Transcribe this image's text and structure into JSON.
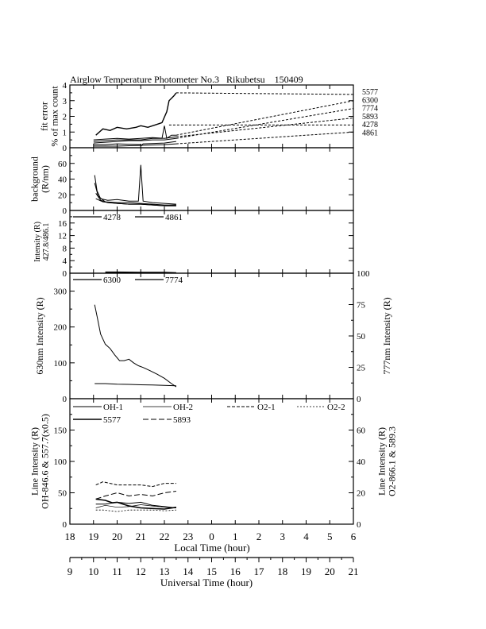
{
  "page": {
    "title": "Airglow Temperature Photometer No.3   Rikubetsu    150409"
  },
  "x_axes": {
    "local": {
      "label": "Local Time (hour)",
      "ticks": [
        "18",
        "19",
        "20",
        "21",
        "22",
        "23",
        "0",
        "1",
        "2",
        "3",
        "4",
        "5",
        "6"
      ]
    },
    "universal": {
      "label": "Universal Time (hour)",
      "ticks": [
        "9",
        "10",
        "11",
        "12",
        "13",
        "14",
        "15",
        "16",
        "17",
        "18",
        "19",
        "20",
        "21"
      ]
    }
  },
  "chart_data": [
    {
      "type": "line",
      "panel": "fit_error",
      "ylabel": [
        "fit error",
        "% of max count"
      ],
      "ylim": [
        0,
        4
      ],
      "yticks": [
        "0",
        "1",
        "2",
        "3",
        "4"
      ],
      "x_units": "local time hour (18-30)",
      "line_labels": [
        "5577",
        "6300",
        "7774",
        "5893",
        "4278",
        "4861"
      ],
      "series": [
        {
          "name": "5577",
          "style": "solid",
          "width": 1.4,
          "x": [
            19.1,
            19.4,
            19.7,
            20.0,
            20.4,
            20.8,
            21.0,
            21.3,
            21.7,
            21.9,
            22.1,
            22.2,
            22.4,
            22.5
          ],
          "y": [
            0.8,
            1.2,
            1.1,
            1.3,
            1.2,
            1.3,
            1.4,
            1.3,
            1.5,
            1.6,
            2.3,
            3.0,
            3.3,
            3.5
          ]
        },
        {
          "name": "6300",
          "style": "solid",
          "width": 1,
          "x": [
            19.0,
            19.5,
            20.0,
            20.5,
            21.0,
            21.5,
            21.9,
            22.0,
            22.1,
            22.3,
            22.5
          ],
          "y": [
            0.4,
            0.45,
            0.5,
            0.5,
            0.5,
            0.6,
            0.6,
            1.4,
            0.6,
            0.8,
            0.8
          ]
        },
        {
          "name": "7774",
          "style": "solid",
          "width": 1,
          "x": [
            19.0,
            19.5,
            20.0,
            20.5,
            21.0,
            21.5,
            22.0,
            22.5
          ],
          "y": [
            0.3,
            0.35,
            0.4,
            0.45,
            0.45,
            0.5,
            0.5,
            0.6
          ]
        },
        {
          "name": "5893",
          "style": "solid",
          "width": 1,
          "x": [
            19.0,
            19.5,
            20.0,
            20.5,
            21.0,
            21.5,
            22.0,
            22.5
          ],
          "y": [
            0.5,
            0.55,
            0.6,
            0.55,
            0.6,
            0.65,
            0.6,
            0.7
          ]
        },
        {
          "name": "4278",
          "style": "solid",
          "width": 1,
          "x": [
            19.0,
            19.5,
            20.0,
            21.0,
            21.0,
            21.1,
            22.0,
            22.5
          ],
          "y": [
            0.2,
            0.2,
            0.25,
            0.2,
            0.1,
            0.25,
            0.3,
            0.4
          ]
        },
        {
          "name": "4861",
          "style": "solid",
          "width": 1,
          "x": [
            19.0,
            20.0,
            21.0,
            22.0,
            22.5
          ],
          "y": [
            0.1,
            0.1,
            0.15,
            0.2,
            0.25
          ]
        }
      ],
      "connectors": [
        {
          "name": "5577",
          "x": [
            22.5,
            30.0
          ],
          "y": [
            3.5,
            3.4
          ]
        },
        {
          "name": "6300",
          "x": [
            22.5,
            30.0
          ],
          "y": [
            0.8,
            3.0
          ]
        },
        {
          "name": "7774",
          "x": [
            22.5,
            30.0
          ],
          "y": [
            0.6,
            2.5
          ]
        },
        {
          "name": "5893",
          "x": [
            22.5,
            30.0
          ],
          "y": [
            0.7,
            1.9
          ]
        },
        {
          "name": "4278",
          "x": [
            22.2,
            30.0
          ],
          "y": [
            1.45,
            1.45
          ]
        },
        {
          "name": "4861",
          "x": [
            22.5,
            30.0
          ],
          "y": [
            0.25,
            1.0
          ]
        }
      ]
    },
    {
      "type": "line",
      "panel": "background",
      "ylabel": [
        "background",
        "(R/nm)"
      ],
      "ylim": [
        0,
        80
      ],
      "yticks": [
        "0",
        "20",
        "40",
        "60"
      ],
      "series": [
        {
          "name": "b1",
          "x": [
            19.05,
            19.15,
            19.3,
            19.6,
            20.0,
            20.5,
            20.9,
            21.0,
            21.1,
            21.5,
            22.0,
            22.5
          ],
          "y": [
            45,
            25,
            15,
            13,
            14,
            12,
            12,
            58,
            12,
            10,
            9,
            8
          ]
        },
        {
          "name": "b2",
          "x": [
            19.05,
            19.2,
            19.5,
            20.0,
            20.5,
            21.0,
            21.5,
            22.0,
            22.5
          ],
          "y": [
            35,
            18,
            11,
            10,
            10,
            9,
            8,
            7,
            7
          ]
        },
        {
          "name": "b3",
          "x": [
            19.1,
            19.3,
            19.6,
            20.0,
            20.5,
            21.0,
            21.5,
            22.0,
            22.5
          ],
          "y": [
            22,
            13,
            10,
            9,
            8,
            8,
            7,
            6,
            6
          ]
        },
        {
          "name": "b4",
          "x": [
            19.1,
            19.4,
            20.0,
            20.5,
            21.0,
            21.5,
            22.0,
            22.5
          ],
          "y": [
            15,
            11,
            9,
            8,
            8,
            7,
            6,
            6
          ]
        }
      ]
    },
    {
      "type": "line",
      "panel": "intensity_blue",
      "ylabel": [
        "Intensity (R)",
        "427.8/486.1"
      ],
      "ylim": [
        0,
        20
      ],
      "yticks": [
        "0",
        "4",
        "8",
        "12",
        "16"
      ],
      "legend": [
        "4278",
        "4861"
      ],
      "series": [
        {
          "name": "4278",
          "x": [
            19.5,
            20.0,
            21.0,
            22.0,
            22.5
          ],
          "y": [
            0.4,
            0.4,
            0.3,
            0.3,
            0.2
          ]
        },
        {
          "name": "4861",
          "x": [
            19.5,
            20.0,
            21.0,
            22.0,
            22.5
          ],
          "y": [
            0.2,
            0.2,
            0.2,
            0.1,
            0.1
          ]
        }
      ]
    },
    {
      "type": "line",
      "panel": "red_oxygen",
      "ylabel": "630nm Intensity (R)",
      "ylabel_right": "777nm Intensity (R)",
      "ylim": [
        0,
        350
      ],
      "ylim_right": [
        0,
        100
      ],
      "yticks": [
        "0",
        "100",
        "200",
        "300"
      ],
      "yticks_right": [
        "0",
        "25",
        "50",
        "75",
        "100"
      ],
      "legend": [
        "6300",
        "7774"
      ],
      "series": [
        {
          "name": "6300",
          "axis": "left",
          "x": [
            19.05,
            19.15,
            19.3,
            19.5,
            19.7,
            19.9,
            20.1,
            20.3,
            20.5,
            20.7,
            20.9,
            21.1,
            21.4,
            21.7,
            22.0,
            22.3,
            22.5
          ],
          "y": [
            262,
            230,
            180,
            152,
            140,
            122,
            106,
            106,
            110,
            100,
            92,
            87,
            78,
            68,
            57,
            42,
            33
          ]
        },
        {
          "name": "7774",
          "axis": "right",
          "x": [
            19.05,
            19.5,
            20.0,
            20.5,
            21.0,
            21.5,
            22.0,
            22.5
          ],
          "y": [
            12.0,
            12.0,
            11.6,
            11.4,
            11.1,
            10.9,
            10.6,
            10.3
          ]
        }
      ]
    },
    {
      "type": "line",
      "panel": "line_intensity",
      "ylabel": [
        "Line Intensity (R)",
        "OH-846.6 & 557.7(x0.5)"
      ],
      "ylabel_right": [
        "Line Intensity (R)",
        "O2-866.1 & 589.3"
      ],
      "ylim": [
        0,
        200
      ],
      "ylim_right": [
        0,
        80
      ],
      "yticks": [
        "0",
        "50",
        "100",
        "150"
      ],
      "yticks_right": [
        "0",
        "20",
        "40",
        "60"
      ],
      "legend": [
        "OH-1",
        "OH-2",
        "O2-1",
        "O2-2",
        "5577",
        "5893"
      ],
      "series": [
        {
          "name": "OH-1",
          "axis": "left",
          "dash": "",
          "width": 1,
          "x": [
            19.1,
            19.5,
            20.0,
            20.5,
            21.0,
            21.5,
            22.0,
            22.5
          ],
          "y": [
            32,
            32,
            35,
            33,
            35,
            30,
            28,
            26
          ]
        },
        {
          "name": "OH-2",
          "axis": "left",
          "dash": "",
          "width": 0.7,
          "x": [
            19.1,
            19.5,
            20.0,
            20.5,
            21.0,
            21.5,
            22.0,
            22.5
          ],
          "y": [
            26,
            30,
            27,
            28,
            31,
            29,
            27,
            26
          ]
        },
        {
          "name": "O2-1",
          "axis": "right",
          "dash": "4,2",
          "width": 1,
          "x": [
            19.1,
            19.4,
            19.7,
            20.0,
            20.5,
            21.0,
            21.5,
            22.0,
            22.5
          ],
          "y": [
            25,
            27,
            26,
            25,
            25,
            25,
            24,
            26,
            26
          ]
        },
        {
          "name": "O2-2",
          "axis": "right",
          "dash": "2,2",
          "width": 0.8,
          "x": [
            19.1,
            19.4,
            19.7,
            20.0,
            20.5,
            21.0,
            21.5,
            22.0,
            22.5
          ],
          "y": [
            9,
            9,
            8.5,
            8,
            9,
            9,
            9,
            8.5,
            9
          ]
        },
        {
          "name": "5577",
          "axis": "left",
          "dash": "",
          "width": 1.6,
          "x": [
            19.1,
            19.5,
            19.8,
            20.0,
            20.5,
            21.0,
            21.5,
            22.0,
            22.5
          ],
          "y": [
            40,
            38,
            34,
            35,
            29,
            26,
            25,
            24,
            27
          ]
        },
        {
          "name": "5893",
          "axis": "right",
          "dash": "7,3",
          "width": 1,
          "x": [
            19.1,
            19.5,
            20.0,
            20.5,
            21.0,
            21.5,
            22.0,
            22.5
          ],
          "y": [
            16,
            18,
            20,
            18,
            19,
            18,
            20,
            21
          ]
        }
      ]
    }
  ]
}
